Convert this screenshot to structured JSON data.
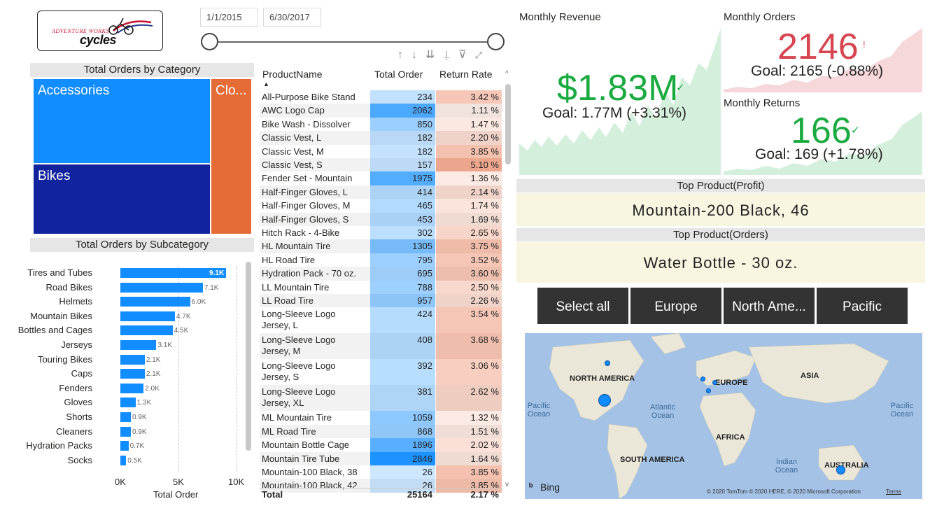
{
  "logo": {
    "line1": "ADVENTURE WORKS",
    "line2": "cycles"
  },
  "date_range": {
    "start": "1/1/2015",
    "end": "6/30/2017"
  },
  "category_chart": {
    "title": "Total Orders by Category",
    "tiles": [
      "Accessories",
      "Bikes",
      "Clo..."
    ]
  },
  "subcategory_chart": {
    "title": "Total Orders by Subcategory",
    "xlabel": "Total Order",
    "ticks": [
      "0K",
      "5K",
      "10K"
    ]
  },
  "chart_data": {
    "type": "bar",
    "title": "Total Orders by Subcategory",
    "xlabel": "Total Order",
    "xlim": [
      0,
      10000
    ],
    "categories": [
      "Tires and Tubes",
      "Road Bikes",
      "Helmets",
      "Mountain Bikes",
      "Bottles and Cages",
      "Jerseys",
      "Touring Bikes",
      "Caps",
      "Fenders",
      "Gloves",
      "Shorts",
      "Cleaners",
      "Hydration Packs",
      "Socks"
    ],
    "values": [
      9100,
      7100,
      6000,
      4700,
      4500,
      3100,
      2100,
      2100,
      2000,
      1300,
      900,
      900,
      700,
      500
    ],
    "labels": [
      "9.1K",
      "7.1K",
      "6.0K",
      "4.7K",
      "4.5K",
      "3.1K",
      "2.1K",
      "2.1K",
      "2.0K",
      "1.3K",
      "0.9K",
      "0.9K",
      "0.7K",
      "0.5K"
    ]
  },
  "table": {
    "headers": [
      "ProductName",
      "Total Order",
      "Return Rate"
    ],
    "rows": [
      {
        "name": "All-Purpose Bike Stand",
        "order": "234",
        "rate": "3.42 %",
        "o": 234,
        "r": 3.42
      },
      {
        "name": "AWC Logo Cap",
        "order": "2062",
        "rate": "1.11 %",
        "o": 2062,
        "r": 1.11
      },
      {
        "name": "Bike Wash - Dissolver",
        "order": "850",
        "rate": "1.47 %",
        "o": 850,
        "r": 1.47
      },
      {
        "name": "Classic Vest, L",
        "order": "182",
        "rate": "2.20 %",
        "o": 182,
        "r": 2.2
      },
      {
        "name": "Classic Vest, M",
        "order": "182",
        "rate": "3.85 %",
        "o": 182,
        "r": 3.85
      },
      {
        "name": "Classic Vest, S",
        "order": "157",
        "rate": "5.10 %",
        "o": 157,
        "r": 5.1
      },
      {
        "name": "Fender Set - Mountain",
        "order": "1975",
        "rate": "1.36 %",
        "o": 1975,
        "r": 1.36
      },
      {
        "name": "Half-Finger Gloves, L",
        "order": "414",
        "rate": "2.14 %",
        "o": 414,
        "r": 2.14
      },
      {
        "name": "Half-Finger Gloves, M",
        "order": "465",
        "rate": "1.74 %",
        "o": 465,
        "r": 1.74
      },
      {
        "name": "Half-Finger Gloves, S",
        "order": "453",
        "rate": "1.69 %",
        "o": 453,
        "r": 1.69
      },
      {
        "name": "Hitch Rack - 4-Bike",
        "order": "302",
        "rate": "2.65 %",
        "o": 302,
        "r": 2.65
      },
      {
        "name": "HL Mountain Tire",
        "order": "1305",
        "rate": "3.75 %",
        "o": 1305,
        "r": 3.75
      },
      {
        "name": "HL Road Tire",
        "order": "795",
        "rate": "3.52 %",
        "o": 795,
        "r": 3.52
      },
      {
        "name": "Hydration Pack - 70 oz.",
        "order": "695",
        "rate": "3.60 %",
        "o": 695,
        "r": 3.6
      },
      {
        "name": "LL Mountain Tire",
        "order": "788",
        "rate": "2.50 %",
        "o": 788,
        "r": 2.5
      },
      {
        "name": "LL Road Tire",
        "order": "957",
        "rate": "2.26 %",
        "o": 957,
        "r": 2.26
      },
      {
        "name": "Long-Sleeve Logo Jersey, L",
        "order": "424",
        "rate": "3.54 %",
        "o": 424,
        "r": 3.54
      },
      {
        "name": "Long-Sleeve Logo Jersey, M",
        "order": "408",
        "rate": "3.68 %",
        "o": 408,
        "r": 3.68
      },
      {
        "name": "Long-Sleeve Logo Jersey, S",
        "order": "392",
        "rate": "3.06 %",
        "o": 392,
        "r": 3.06
      },
      {
        "name": "Long-Sleeve Logo Jersey, XL",
        "order": "381",
        "rate": "2.62 %",
        "o": 381,
        "r": 2.62
      },
      {
        "name": "ML Mountain Tire",
        "order": "1059",
        "rate": "1.32 %",
        "o": 1059,
        "r": 1.32
      },
      {
        "name": "ML Road Tire",
        "order": "868",
        "rate": "1.51 %",
        "o": 868,
        "r": 1.51
      },
      {
        "name": "Mountain Bottle Cage",
        "order": "1896",
        "rate": "2.02 %",
        "o": 1896,
        "r": 2.02
      },
      {
        "name": "Mountain Tire Tube",
        "order": "2846",
        "rate": "1.64 %",
        "o": 2846,
        "r": 1.64
      },
      {
        "name": "Mountain-100 Black, 38",
        "order": "26",
        "rate": "3.85 %",
        "o": 26,
        "r": 3.85
      },
      {
        "name": "Mountain-100 Black, 42",
        "order": "26",
        "rate": "3.85 %",
        "o": 26,
        "r": 3.85
      }
    ],
    "total": {
      "label": "Total",
      "order": "25164",
      "rate": "2.17 %"
    }
  },
  "kpi": {
    "revenue": {
      "title": "Monthly Revenue",
      "value": "$1.83M",
      "goal": "Goal: 1.77M",
      "delta": "(+3.31%)",
      "color": "#1aab40"
    },
    "orders": {
      "title": "Monthly Orders",
      "value": "2146",
      "goal": "Goal: 2165",
      "delta": "(-0.88%)",
      "color": "#d64550"
    },
    "returns": {
      "title": "Monthly Returns",
      "value": "166",
      "goal": "Goal: 169",
      "delta": "(+1.78%)",
      "color": "#1aab40"
    }
  },
  "top_products": {
    "profit_title": "Top Product(Profit)",
    "profit_value": "Mountain-200 Black, 46",
    "orders_title": "Top Product(Orders)",
    "orders_value": "Water Bottle - 30 oz."
  },
  "region_slicer": [
    "Select all",
    "Europe",
    "North Ame...",
    "Pacific"
  ],
  "map": {
    "continents": [
      "NORTH AMERICA",
      "EUROPE",
      "ASIA",
      "AFRICA",
      "SOUTH AMERICA",
      "AUSTRALIA"
    ],
    "oceans": [
      "Pacific Ocean",
      "Atlantic Ocean",
      "Indian Ocean",
      "Pacific Ocean"
    ],
    "brand": "Bing",
    "copyright": "© 2020 TomTom © 2020 HERE, © 2020 Microsoft Corporation",
    "terms": "Terms"
  }
}
